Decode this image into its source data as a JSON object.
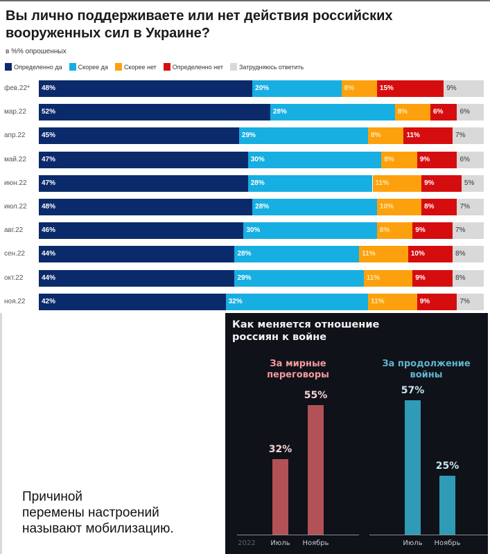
{
  "chart_data": [
    {
      "type": "bar",
      "orientation": "horizontal-stacked",
      "title": "Вы лично поддерживаете или нет действия российских вооруженных сил в Украине?",
      "subtitle": "в %% опрошенных",
      "legend_position": "top-left",
      "categories": [
        "фев.22*",
        "мар.22",
        "апр.22",
        "май.22",
        "июн.22",
        "июл.22",
        "авг.22",
        "сен.22",
        "окт.22",
        "ноя.22"
      ],
      "series": [
        {
          "name": "Определенно да",
          "color": "#0b2a6b",
          "label_color": "#ffffff",
          "values": [
            48,
            52,
            45,
            47,
            47,
            48,
            46,
            44,
            44,
            42
          ]
        },
        {
          "name": "Скорее да",
          "color": "#17aee2",
          "label_color": "#ffffff",
          "values": [
            20,
            28,
            29,
            30,
            28,
            28,
            30,
            28,
            29,
            32
          ]
        },
        {
          "name": "Скорее нет",
          "color": "#fca10d",
          "label_color": "#ffe7b0",
          "values": [
            8,
            8,
            8,
            8,
            11,
            10,
            8,
            11,
            11,
            11
          ]
        },
        {
          "name": "Определенно нет",
          "color": "#d60d0f",
          "label_color": "#ffffff",
          "values": [
            15,
            6,
            11,
            9,
            9,
            8,
            9,
            10,
            9,
            9
          ]
        },
        {
          "name": "Затрудняюсь ответить",
          "color": "#d9d9d9",
          "label_color": "#333333",
          "values": [
            9,
            6,
            7,
            6,
            5,
            7,
            7,
            8,
            8,
            7
          ]
        }
      ],
      "xlim": [
        0,
        100
      ],
      "grid": false
    },
    {
      "type": "bar",
      "orientation": "vertical",
      "title": "Как меняется отношение россиян к войне",
      "year_label": "2022",
      "groups": [
        {
          "name": "За мирные переговоры",
          "color": "#b25257",
          "title_color": "#f19aa0",
          "value_color": "#f6d4d6",
          "categories": [
            "Июль",
            "Ноябрь"
          ],
          "values": [
            32,
            55
          ]
        },
        {
          "name": "За продолжение войны",
          "color": "#2f9bb6",
          "title_color": "#5fb5d0",
          "value_color": "#c8e3ee",
          "categories": [
            "Июль",
            "Ноябрь"
          ],
          "values": [
            57,
            25
          ]
        }
      ],
      "ylim": [
        0,
        60
      ],
      "grid": false
    }
  ],
  "caption": {
    "lines": [
      "Причиной",
      "перемены настроений",
      "называют мобилизацию."
    ]
  }
}
